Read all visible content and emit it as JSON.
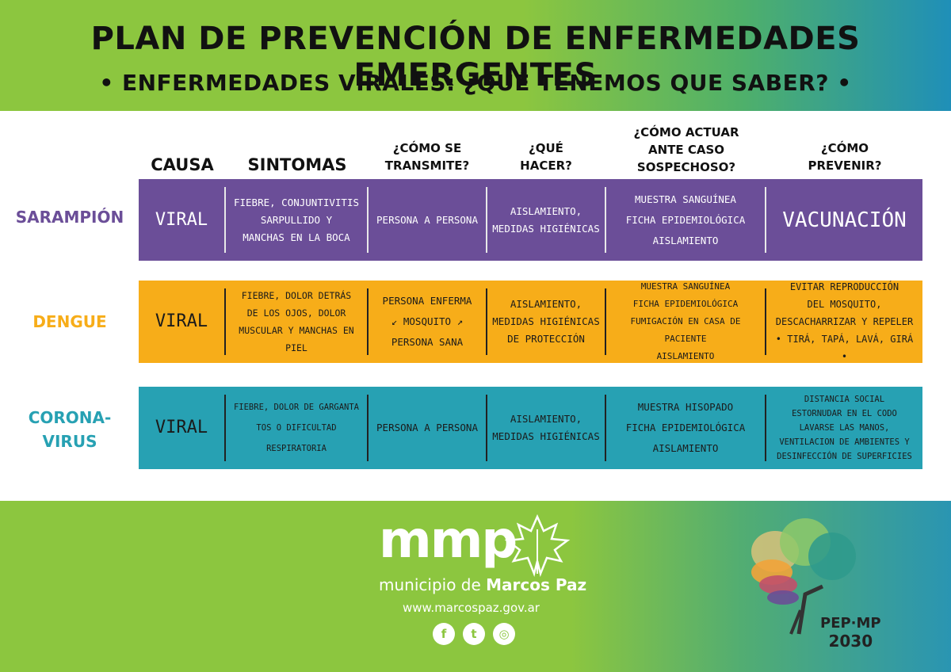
{
  "header": {
    "title": "PLAN DE PREVENCIÓN DE ENFERMEDADES EMERGENTES",
    "subtitle": "• ENFERMEDADES VIRALES: ¿QUÉ TENEMOS QUE SABER? •"
  },
  "columns": {
    "causa": "CAUSA",
    "sintomas": "SINTOMAS",
    "transmite_1": "¿CÓMO SE",
    "transmite_2": "TRANSMITE?",
    "hacer_1": "¿QUÉ",
    "hacer_2": "HACER?",
    "actuar_1": "¿CÓMO ACTUAR",
    "actuar_2": "ANTE CASO",
    "actuar_3": "SOSPECHOSO?",
    "prevenir_1": "¿CÓMO",
    "prevenir_2": "PREVENIR?"
  },
  "rows": {
    "sarampion": {
      "label": "SARAMPIÓN",
      "color": "#6b4e98",
      "causa": "VIRAL",
      "sintomas": [
        "FIEBRE, CONJUNTIVITIS",
        "SARPULLIDO Y",
        "MANCHAS EN LA BOCA"
      ],
      "transmite": [
        "PERSONA A PERSONA"
      ],
      "hacer": [
        "AISLAMIENTO,",
        "MEDIDAS HIGIÉNICAS"
      ],
      "actuar": [
        "MUESTRA SANGUÍNEA",
        "FICHA EPIDEMIOLÓGICA",
        "AISLAMIENTO"
      ],
      "prevenir": [
        "VACUNACIÓN"
      ]
    },
    "dengue": {
      "label": "DENGUE",
      "color": "#f7ad19",
      "causa": "VIRAL",
      "sintomas": [
        "FIEBRE, DOLOR DETRÁS",
        "DE LOS OJOS, DOLOR",
        "MUSCULAR Y MANCHAS EN PIEL"
      ],
      "transmite": [
        "PERSONA ENFERMA",
        "MOSQUITO",
        "PERSONA SANA"
      ],
      "hacer": [
        "AISLAMIENTO,",
        "MEDIDAS HIGIÉNICAS",
        "DE PROTECCIÓN"
      ],
      "actuar": [
        "MUESTRA SANGUÍNEA",
        "FICHA EPIDEMIOLÓGICA",
        "FUMIGACIÓN EN CASA DE PACIENTE",
        "AISLAMIENTO"
      ],
      "prevenir": [
        "EVITAR REPRODUCCIÓN",
        "DEL MOSQUITO,",
        "DESCACHARRIZAR Y REPELER",
        "• TIRÁ, TAPÁ, LAVÁ, GIRÁ •"
      ]
    },
    "coronavirus": {
      "label_1": "CORONA-",
      "label_2": "VIRUS",
      "color": "#27a1b3",
      "causa": "VIRAL",
      "sintomas": [
        "FIEBRE, DOLOR DE GARGANTA",
        "TOS O DIFICULTAD RESPIRATORIA"
      ],
      "transmite": [
        "PERSONA A PERSONA"
      ],
      "hacer": [
        "AISLAMIENTO,",
        "MEDIDAS HIGIÉNICAS"
      ],
      "actuar": [
        "MUESTRA HISOPADO",
        "FICHA EPIDEMIOLÓGICA",
        "AISLAMIENTO"
      ],
      "prevenir": [
        "DISTANCIA SOCIAL",
        "ESTORNUDAR EN EL CODO",
        "LAVARSE LAS MANOS,",
        "VENTILACION DE AMBIENTES Y",
        "DESINFECCIÓN DE SUPERFICIES"
      ]
    }
  },
  "footer": {
    "logo_text": "mmp",
    "municipio": "municipio de ",
    "municipio_bold": "Marcos Paz",
    "website": "www.marcospaz.gov.ar",
    "social_facebook": "f",
    "social_twitter": "t",
    "social_instagram": "◎",
    "pep_1": "PEP·MP",
    "pep_2": "2030"
  }
}
